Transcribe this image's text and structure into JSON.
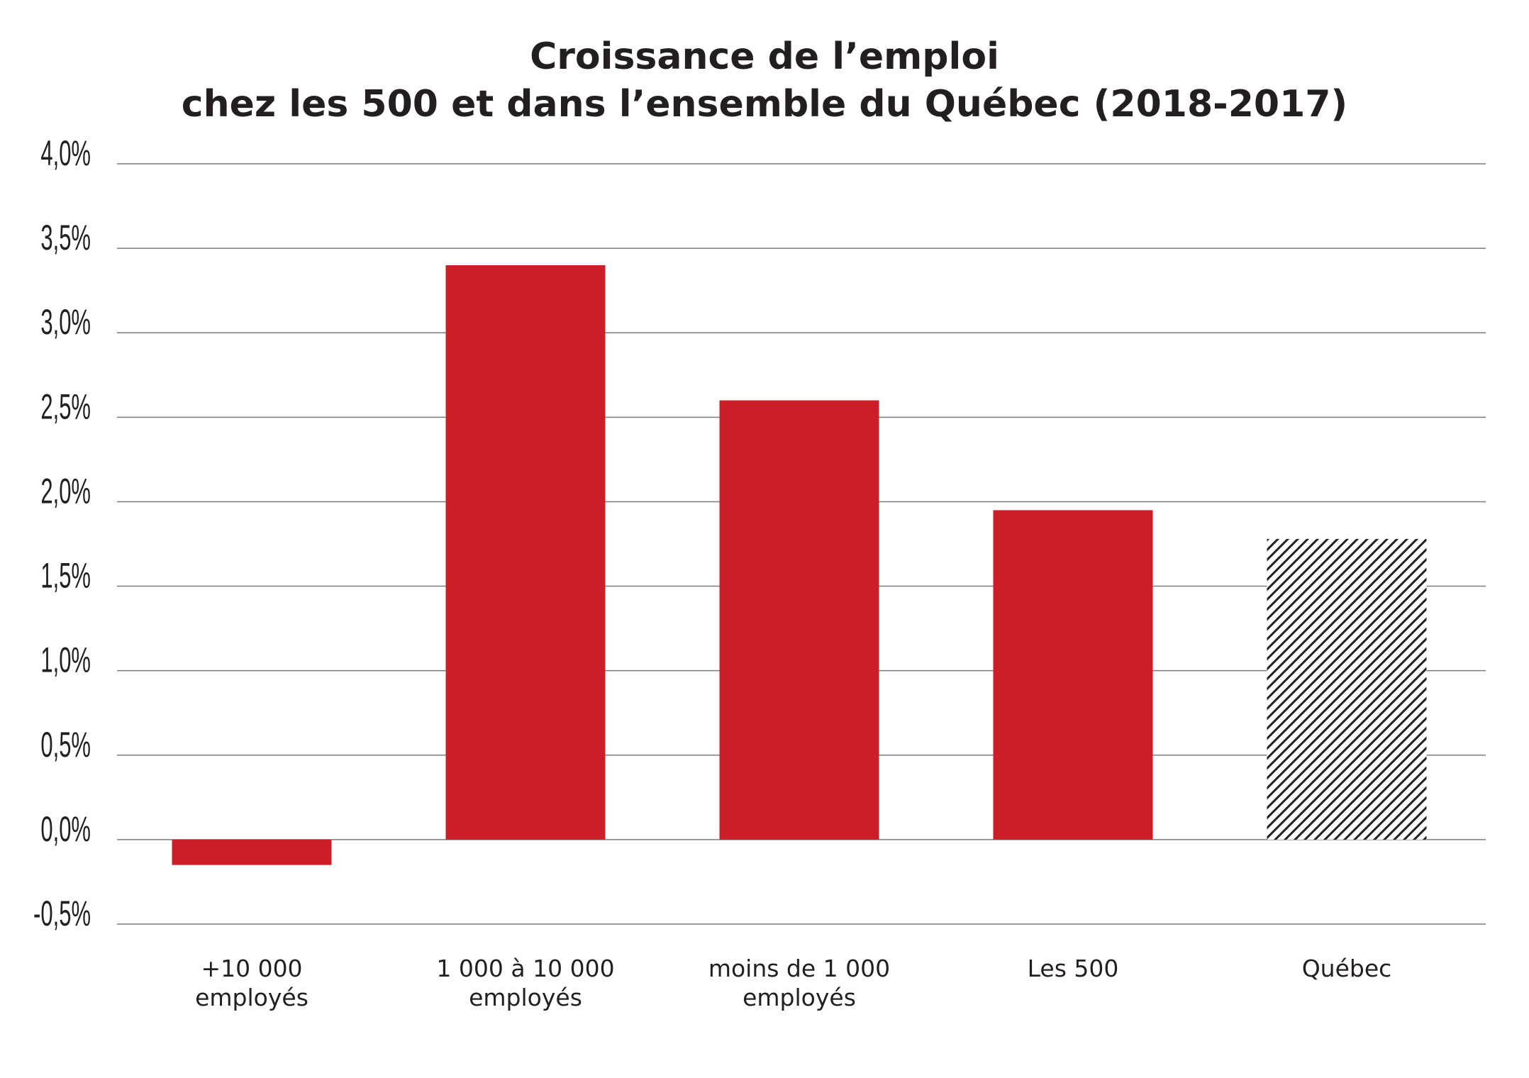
{
  "chart_data": {
    "type": "bar",
    "title_lines": [
      "Croissance de l’emploi",
      "chez les 500 et dans l’ensemble du Québec (2018-2017)"
    ],
    "categories": [
      [
        "+10 000",
        "employés"
      ],
      [
        "1 000 à 10 000",
        "employés"
      ],
      [
        "moins de 1 000",
        "employés"
      ],
      [
        "Les 500"
      ],
      [
        "Québec"
      ]
    ],
    "values": [
      -0.15,
      3.4,
      2.6,
      1.95,
      1.78
    ],
    "bar_styles": [
      "solid",
      "solid",
      "solid",
      "solid",
      "hatched"
    ],
    "colors": {
      "bar": "#cc1e29",
      "hatch": "#231f20",
      "grid": "#7a7a7a",
      "text": "#231f20"
    },
    "ylim": [
      -0.5,
      4.0
    ],
    "y_ticks": [
      -0.5,
      0.0,
      0.5,
      1.0,
      1.5,
      2.0,
      2.5,
      3.0,
      3.5,
      4.0
    ],
    "y_tick_labels": [
      "-0,5%",
      "0,0%",
      "0,5%",
      "1,0%",
      "1,5%",
      "2,0%",
      "2,5%",
      "3,0%",
      "3,5%",
      "4,0%"
    ],
    "grid": true,
    "legend": "none",
    "xlabel": "",
    "ylabel": ""
  }
}
